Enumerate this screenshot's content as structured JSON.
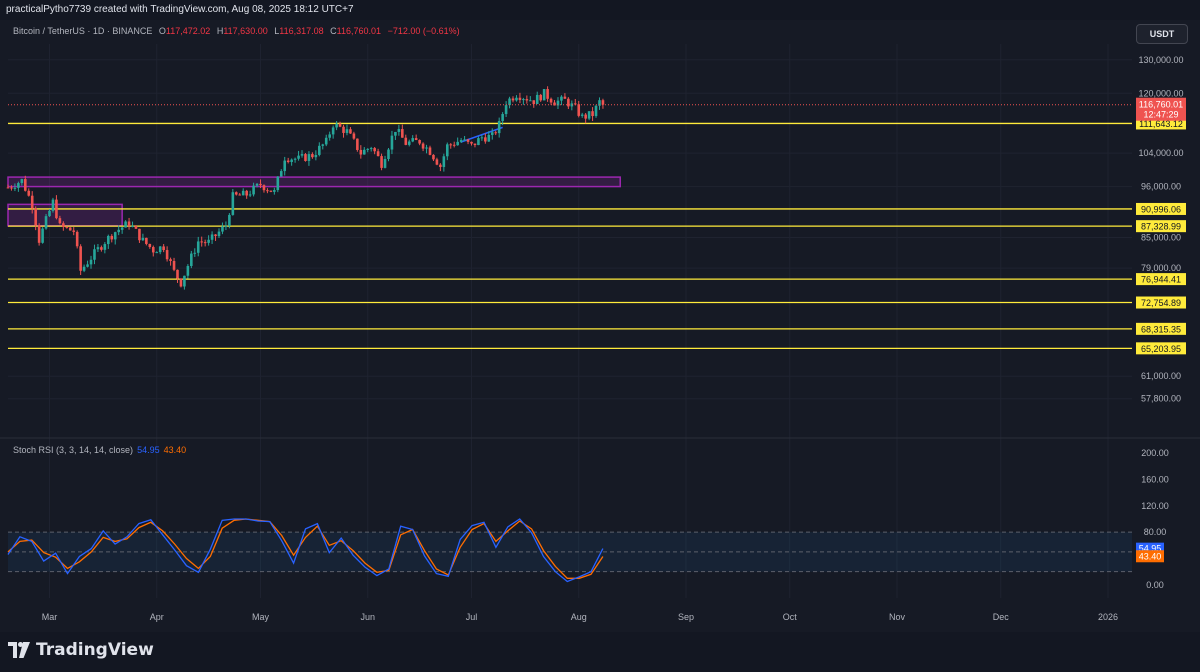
{
  "header": {
    "credit": "practicalPytho7739 created with TradingView.com, Aug 08, 2025 18:12 UTC+7"
  },
  "legend": {
    "symbol": "Bitcoin / TetherUS · 1D · BINANCE",
    "open_label": "O",
    "open": "117,472.02",
    "high_label": "H",
    "high": "117,630.00",
    "low_label": "L",
    "low": "116,317.08",
    "close_label": "C",
    "close": "116,760.01",
    "change": "−712.00 (−0.61%)"
  },
  "currency_button": "USDT",
  "price_axis": {
    "ticks": [
      "130,000.00",
      "120,000.00",
      "104,000.00",
      "96,000.00",
      "85,000.00",
      "79,000.00",
      "61,000.00",
      "57,800.00"
    ],
    "current_price": "116,760.01",
    "countdown": "12:47:29"
  },
  "levels": [
    {
      "label": "111,643.12"
    },
    {
      "label": "90,996.06"
    },
    {
      "label": "87,328.99"
    },
    {
      "label": "76,944.41"
    },
    {
      "label": "72,754.89"
    },
    {
      "label": "68,315.35"
    },
    {
      "label": "65,203.95"
    }
  ],
  "zones": [
    {
      "name": "purple-zone-upper"
    },
    {
      "name": "purple-zone-lower"
    }
  ],
  "time_axis": {
    "labels": [
      "Mar",
      "Apr",
      "May",
      "Jun",
      "Jul",
      "Aug",
      "Sep",
      "Oct",
      "Nov",
      "Dec",
      "2026"
    ]
  },
  "stoch_rsi": {
    "title": "Stoch RSI (3, 3, 14, 14, close)",
    "k_value": "54.95",
    "d_value": "43.40",
    "axis_ticks": [
      "200.00",
      "160.00",
      "120.00",
      "80.00",
      "0.00"
    ],
    "k_badge": "54.95",
    "d_badge": "43.40"
  },
  "colors": {
    "background": "#161a25",
    "up": "#26a69a",
    "down": "#ef5350",
    "level_line": "#ffeb3b",
    "zone": "#9c27b0",
    "k_line": "#2962ff",
    "d_line": "#ff6d00"
  },
  "footer": {
    "brand": "TradingView"
  },
  "chart_data": {
    "type": "candlestick",
    "title": "Bitcoin / TetherUS · 1D · BINANCE",
    "xlabel": "",
    "ylabel": "",
    "ylim": [
      53000,
      135000
    ],
    "x_start": "2025-02-17",
    "x_end": "2025-08-08",
    "close_series": [
      {
        "date": "2025-02-17",
        "close": 95800
      },
      {
        "date": "2025-02-21",
        "close": 97400
      },
      {
        "date": "2025-02-24",
        "close": 92000
      },
      {
        "date": "2025-02-26",
        "close": 84500
      },
      {
        "date": "2025-03-02",
        "close": 92500
      },
      {
        "date": "2025-03-04",
        "close": 87200
      },
      {
        "date": "2025-03-08",
        "close": 86300
      },
      {
        "date": "2025-03-10",
        "close": 78500
      },
      {
        "date": "2025-03-13",
        "close": 81000
      },
      {
        "date": "2025-03-17",
        "close": 84200
      },
      {
        "date": "2025-03-20",
        "close": 86200
      },
      {
        "date": "2025-03-24",
        "close": 88000
      },
      {
        "date": "2025-03-28",
        "close": 84300
      },
      {
        "date": "2025-03-31",
        "close": 82500
      },
      {
        "date": "2025-04-03",
        "close": 83200
      },
      {
        "date": "2025-04-06",
        "close": 78300
      },
      {
        "date": "2025-04-08",
        "close": 76300
      },
      {
        "date": "2025-04-10",
        "close": 79500
      },
      {
        "date": "2025-04-13",
        "close": 84200
      },
      {
        "date": "2025-04-16",
        "close": 84000
      },
      {
        "date": "2025-04-21",
        "close": 87500
      },
      {
        "date": "2025-04-23",
        "close": 93700
      },
      {
        "date": "2025-04-27",
        "close": 94200
      },
      {
        "date": "2025-05-01",
        "close": 96500
      },
      {
        "date": "2025-05-05",
        "close": 94700
      },
      {
        "date": "2025-05-08",
        "close": 103000
      },
      {
        "date": "2025-05-12",
        "close": 102500
      },
      {
        "date": "2025-05-16",
        "close": 103500
      },
      {
        "date": "2025-05-20",
        "close": 106800
      },
      {
        "date": "2025-05-22",
        "close": 111500
      },
      {
        "date": "2025-05-26",
        "close": 109500
      },
      {
        "date": "2025-05-30",
        "close": 104000
      },
      {
        "date": "2025-06-02",
        "close": 105700
      },
      {
        "date": "2025-06-05",
        "close": 101500
      },
      {
        "date": "2025-06-09",
        "close": 110200
      },
      {
        "date": "2025-06-12",
        "close": 106500
      },
      {
        "date": "2025-06-16",
        "close": 107000
      },
      {
        "date": "2025-06-19",
        "close": 104500
      },
      {
        "date": "2025-06-22",
        "close": 100800
      },
      {
        "date": "2025-06-24",
        "close": 105800
      },
      {
        "date": "2025-06-28",
        "close": 107300
      },
      {
        "date": "2025-07-01",
        "close": 105800
      },
      {
        "date": "2025-07-04",
        "close": 108000
      },
      {
        "date": "2025-07-07",
        "close": 108200
      },
      {
        "date": "2025-07-09",
        "close": 111300
      },
      {
        "date": "2025-07-11",
        "close": 117500
      },
      {
        "date": "2025-07-14",
        "close": 119800
      },
      {
        "date": "2025-07-16",
        "close": 119000
      },
      {
        "date": "2025-07-19",
        "close": 117900
      },
      {
        "date": "2025-07-22",
        "close": 119900
      },
      {
        "date": "2025-07-25",
        "close": 117600
      },
      {
        "date": "2025-07-28",
        "close": 118000
      },
      {
        "date": "2025-07-31",
        "close": 115700
      },
      {
        "date": "2025-08-02",
        "close": 113300
      },
      {
        "date": "2025-08-05",
        "close": 114100
      },
      {
        "date": "2025-08-07",
        "close": 117500
      },
      {
        "date": "2025-08-08",
        "close": 116760
      }
    ],
    "stoch_k": [
      46,
      73,
      66,
      36,
      48,
      17,
      43,
      55,
      82,
      62,
      73,
      93,
      99,
      76,
      53,
      29,
      19,
      54,
      98,
      100,
      100,
      97,
      96,
      67,
      33,
      85,
      93,
      49,
      71,
      45,
      27,
      14,
      24,
      89,
      84,
      44,
      17,
      13,
      69,
      90,
      95,
      57,
      88,
      100,
      79,
      43,
      20,
      5,
      12,
      20,
      55
    ],
    "stoch_d": [
      50,
      66,
      68,
      49,
      42,
      25,
      35,
      50,
      72,
      66,
      70,
      87,
      95,
      82,
      62,
      40,
      25,
      43,
      86,
      98,
      100,
      98,
      96,
      75,
      45,
      72,
      89,
      60,
      67,
      52,
      33,
      19,
      22,
      76,
      84,
      52,
      24,
      15,
      57,
      84,
      93,
      66,
      82,
      97,
      85,
      52,
      28,
      10,
      10,
      16,
      43
    ],
    "stoch_ylim": [
      -20,
      220
    ]
  }
}
